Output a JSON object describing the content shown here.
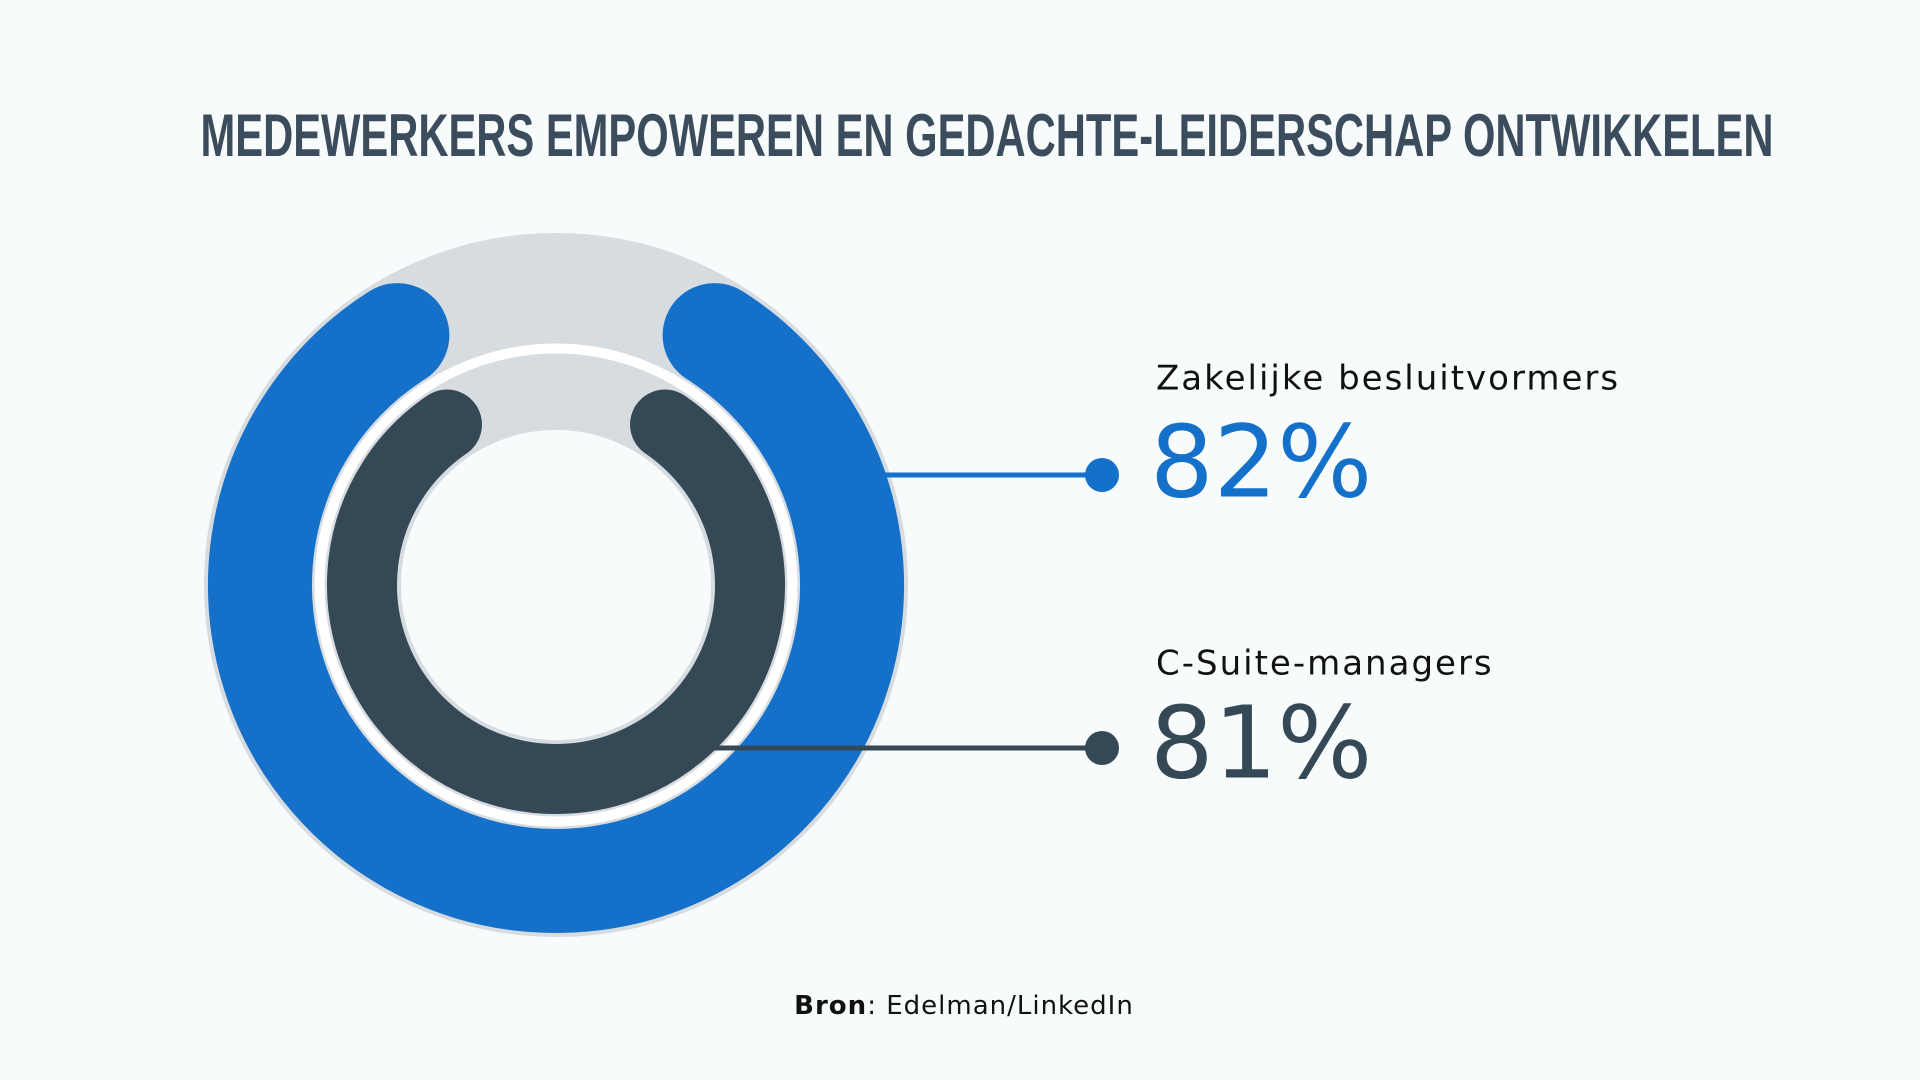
{
  "chart_data": {
    "type": "radial-bar",
    "title": "MEDEWERKERS EMPOWEREN EN GEDACHTE-LEIDERSCHAP ONTWIKKELEN",
    "ylim": [
      0,
      100
    ],
    "track_color": "#d7dce1",
    "series": [
      {
        "name": "Zakelijke besluitvormers",
        "color": "#1470c9",
        "values": [
          82
        ],
        "value_labels": [
          "82%"
        ]
      },
      {
        "name": "C-Suite-managers",
        "color": "#344856",
        "values": [
          81
        ],
        "value_labels": [
          "81%"
        ]
      }
    ],
    "source": {
      "label": "Bron",
      "text": ": Edelman/LinkedIn"
    }
  }
}
